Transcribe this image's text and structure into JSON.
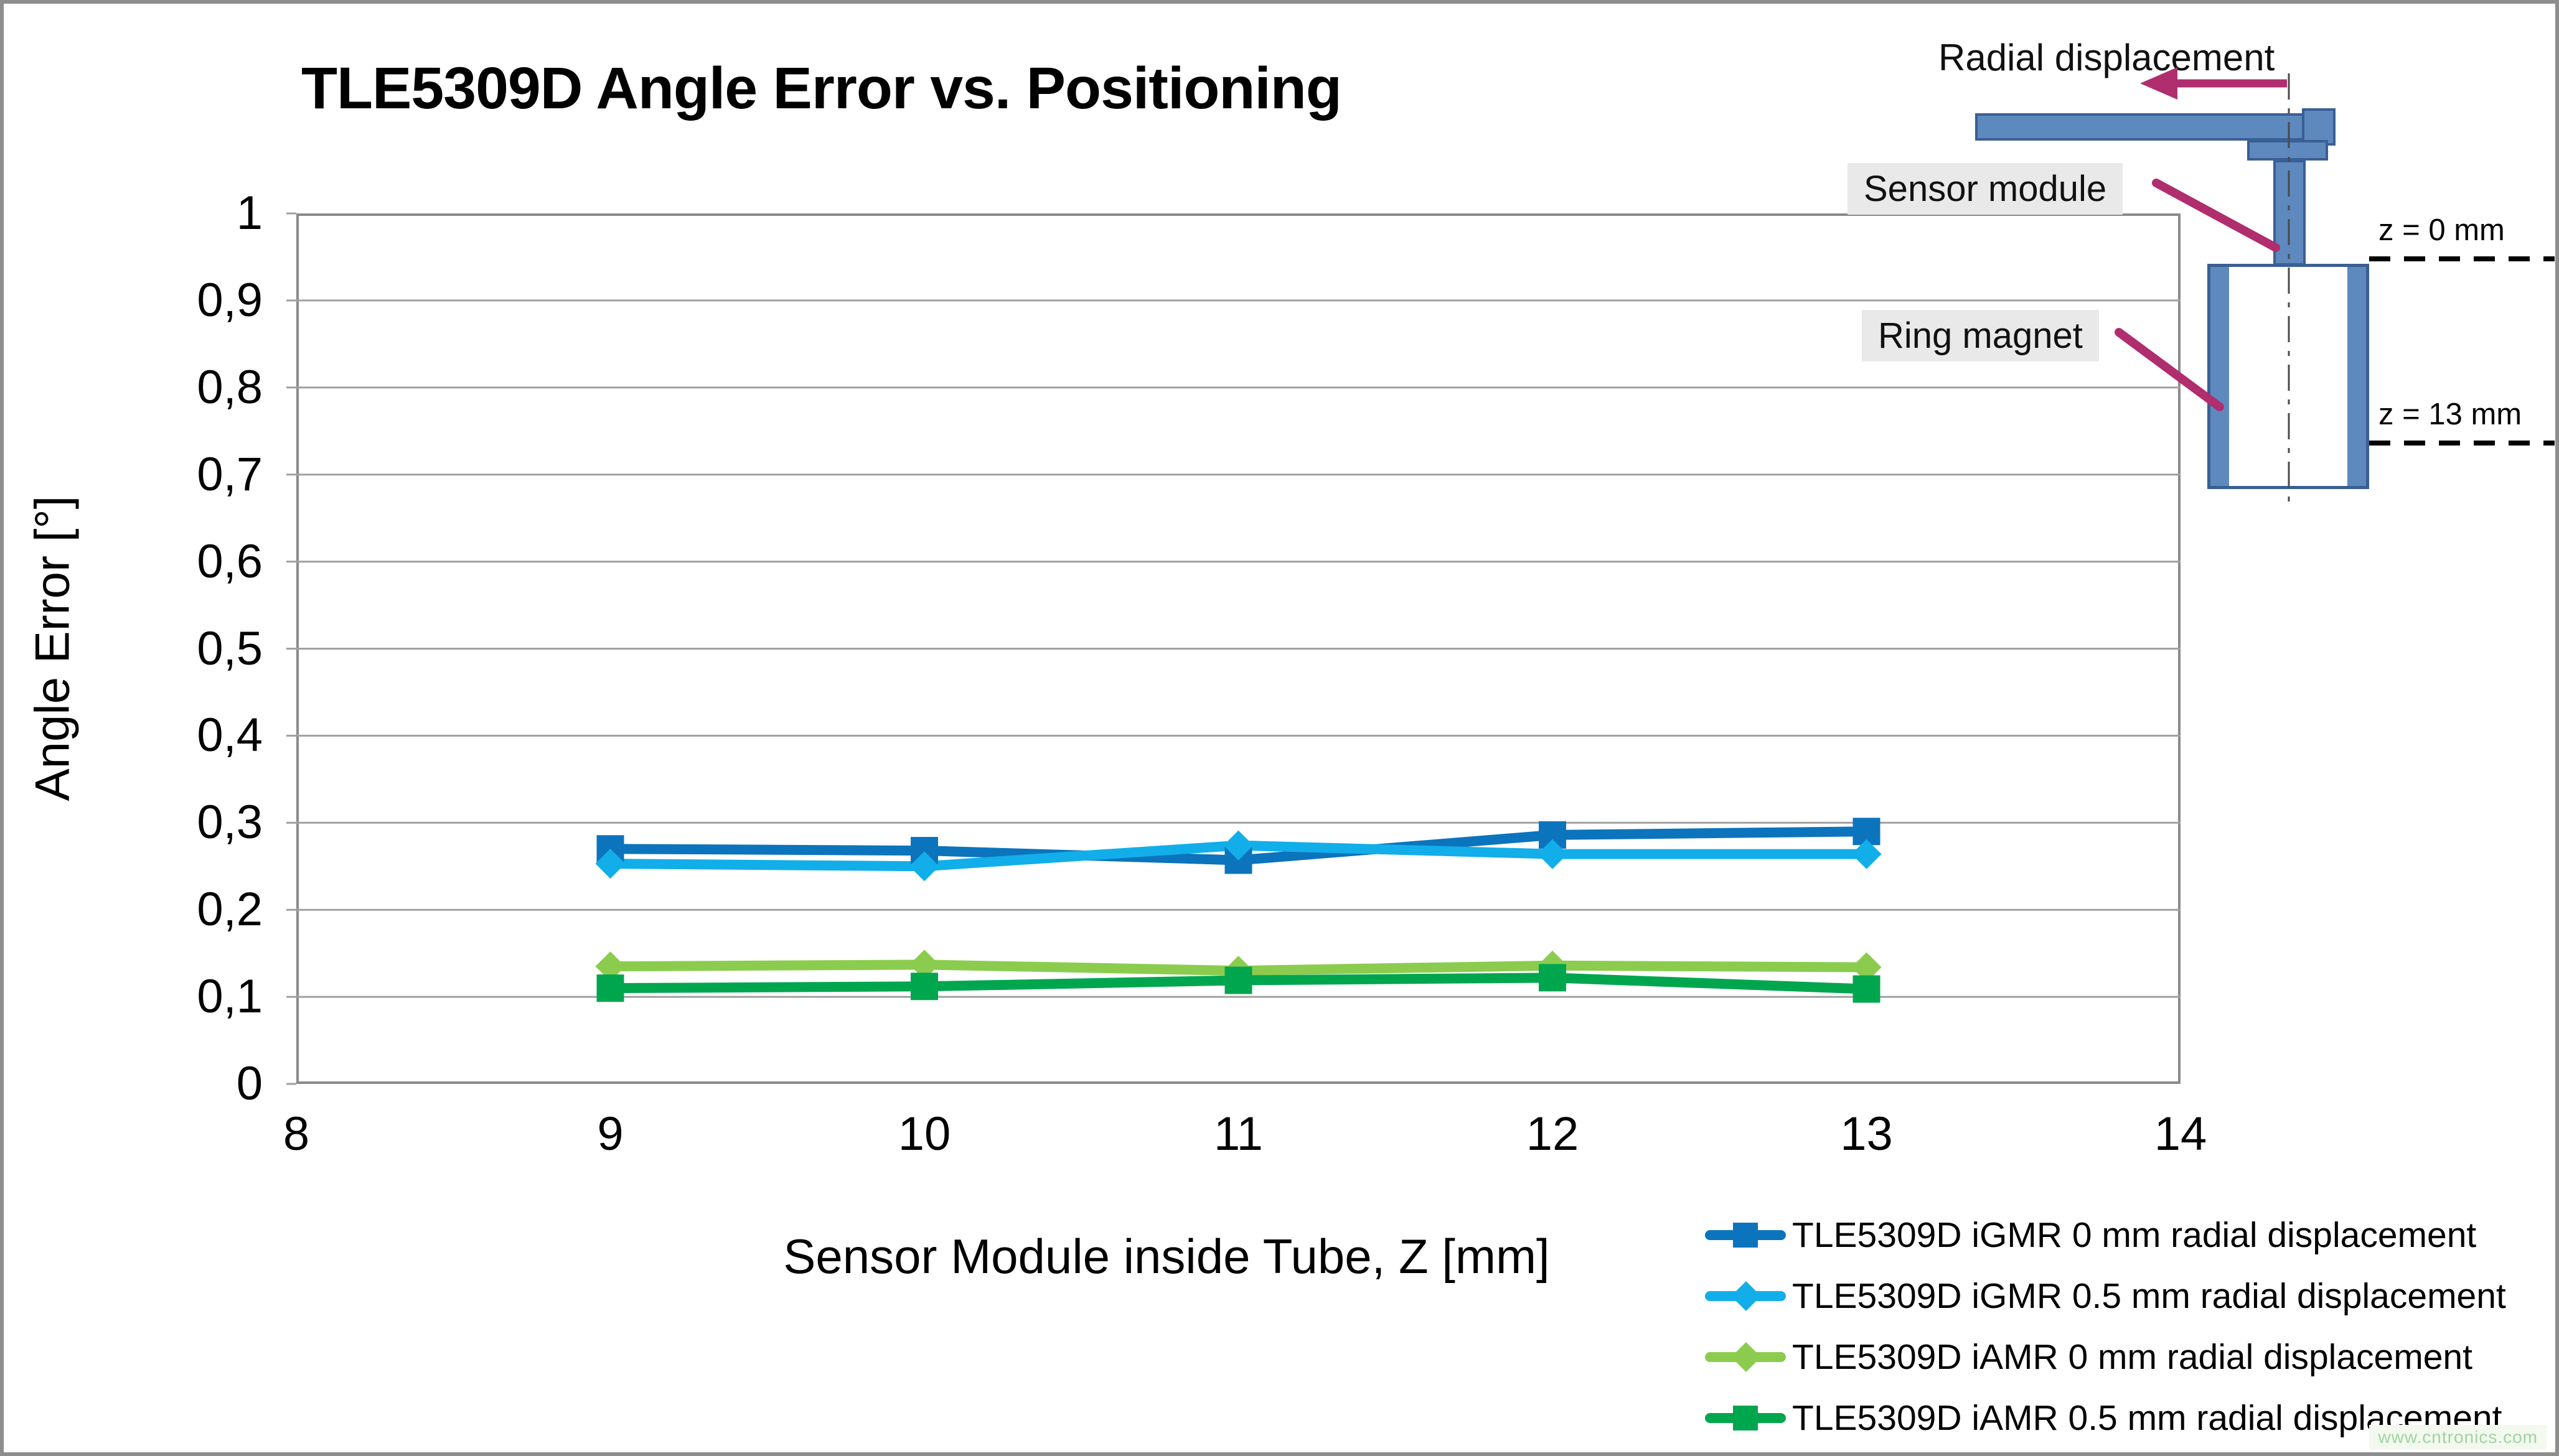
{
  "chart_data": {
    "type": "line",
    "title": "TLE5309D Angle Error vs. Positioning",
    "xlabel": "Sensor Module inside Tube, Z [mm]",
    "ylabel": "Angle Error [°]",
    "xlim": [
      8,
      14
    ],
    "ylim": [
      0,
      1
    ],
    "grid": "horizontal",
    "grid_color": "#a0a0a0",
    "legend_position": "bottom-right",
    "x_ticks": [
      {
        "value": 8,
        "label": "8"
      },
      {
        "value": 9,
        "label": "9"
      },
      {
        "value": 10,
        "label": "10"
      },
      {
        "value": 11,
        "label": "11"
      },
      {
        "value": 12,
        "label": "12"
      },
      {
        "value": 13,
        "label": "13"
      },
      {
        "value": 14,
        "label": "14"
      }
    ],
    "y_ticks": [
      {
        "value": 0,
        "label": "0"
      },
      {
        "value": 0.1,
        "label": "0,1"
      },
      {
        "value": 0.2,
        "label": "0,2"
      },
      {
        "value": 0.3,
        "label": "0,3"
      },
      {
        "value": 0.4,
        "label": "0,4"
      },
      {
        "value": 0.5,
        "label": "0,5"
      },
      {
        "value": 0.6,
        "label": "0,6"
      },
      {
        "value": 0.7,
        "label": "0,7"
      },
      {
        "value": 0.8,
        "label": "0,8"
      },
      {
        "value": 0.9,
        "label": "0,9"
      },
      {
        "value": 1,
        "label": "1"
      }
    ],
    "x": [
      9,
      10,
      11,
      12,
      13
    ],
    "series": [
      {
        "name": "TLE5309D iGMR 0 mm radial displacement",
        "color": "#0b74bd",
        "marker": "square",
        "values": [
          0.27,
          0.268,
          0.257,
          0.286,
          0.29
        ]
      },
      {
        "name": "TLE5309D iGMR 0.5 mm radial displacement",
        "color": "#12aeea",
        "marker": "diamond",
        "values": [
          0.253,
          0.25,
          0.274,
          0.264,
          0.264
        ]
      },
      {
        "name": "TLE5309D iAMR 0 mm radial displacement",
        "color": "#8bcc4e",
        "marker": "diamond",
        "values": [
          0.135,
          0.137,
          0.13,
          0.136,
          0.134
        ]
      },
      {
        "name": "TLE5309D iAMR 0.5 mm radial displacement",
        "color": "#00a64e",
        "marker": "square",
        "values": [
          0.11,
          0.112,
          0.119,
          0.122,
          0.109
        ]
      }
    ]
  },
  "diagram": {
    "radial_displacement_label": "Radial displacement",
    "sensor_module_label": "Sensor module",
    "ring_magnet_label": "Ring magnet",
    "z_top_label": "z = 0 mm",
    "z_bottom_label": "z = 13 mm",
    "shape_fill": "#5d89be",
    "shape_border": "#3a5f94",
    "arrow_color": "#b02d6e"
  },
  "watermark": "www.cntronics.com"
}
